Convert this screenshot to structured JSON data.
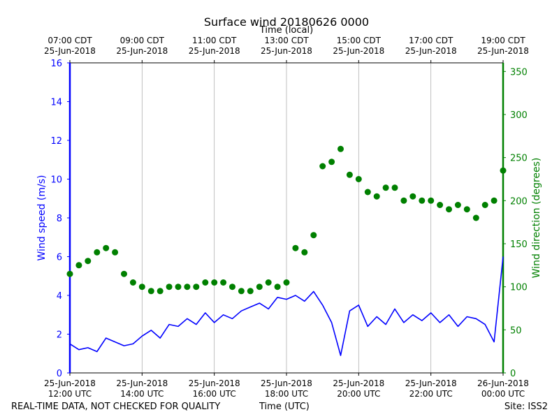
{
  "chart_data": {
    "type": "line+scatter",
    "title": "Surface wind 20180626 0000",
    "top_axis_label": "Time (local)",
    "top_ticks": [
      {
        "hour": 0,
        "time": "07:00 CDT",
        "date": "25-Jun-2018"
      },
      {
        "hour": 2,
        "time": "09:00 CDT",
        "date": "25-Jun-2018"
      },
      {
        "hour": 4,
        "time": "11:00 CDT",
        "date": "25-Jun-2018"
      },
      {
        "hour": 6,
        "time": "13:00 CDT",
        "date": "25-Jun-2018"
      },
      {
        "hour": 8,
        "time": "15:00 CDT",
        "date": "25-Jun-2018"
      },
      {
        "hour": 10,
        "time": "17:00 CDT",
        "date": "25-Jun-2018"
      },
      {
        "hour": 12,
        "time": "19:00 CDT",
        "date": "25-Jun-2018"
      }
    ],
    "bottom_ticks": [
      {
        "hour": 0,
        "date": "25-Jun-2018",
        "time": "12:00 UTC"
      },
      {
        "hour": 2,
        "date": "25-Jun-2018",
        "time": "14:00 UTC"
      },
      {
        "hour": 4,
        "date": "25-Jun-2018",
        "time": "16:00 UTC"
      },
      {
        "hour": 6,
        "date": "25-Jun-2018",
        "time": "18:00 UTC"
      },
      {
        "hour": 8,
        "date": "25-Jun-2018",
        "time": "20:00 UTC"
      },
      {
        "hour": 10,
        "date": "25-Jun-2018",
        "time": "22:00 UTC"
      },
      {
        "hour": 12,
        "date": "26-Jun-2018",
        "time": "00:00 UTC"
      }
    ],
    "xlim_hours_since_12utc": [
      0,
      12
    ],
    "left_axis": {
      "label": "Wind speed (m/s)",
      "ylim": [
        0,
        16
      ],
      "ticks": [
        0,
        2,
        4,
        6,
        8,
        10,
        12,
        14,
        16
      ],
      "color": "#0000ff"
    },
    "right_axis": {
      "label": "Wind direction (degrees)",
      "ylim": [
        0,
        360
      ],
      "ticks": [
        0,
        50,
        100,
        150,
        200,
        250,
        300,
        350
      ],
      "color": "#008000"
    },
    "grid": "vertical",
    "series": [
      {
        "name": "Wind speed",
        "axis": "left",
        "style": "line",
        "color": "#0000ff",
        "hours": [
          0,
          0.25,
          0.5,
          0.75,
          1,
          1.25,
          1.5,
          1.75,
          2,
          2.25,
          2.5,
          2.75,
          3,
          3.25,
          3.5,
          3.75,
          4,
          4.25,
          4.5,
          4.75,
          5,
          5.25,
          5.5,
          5.75,
          6,
          6.25,
          6.5,
          6.75,
          7,
          7.25,
          7.5,
          7.75,
          8,
          8.25,
          8.5,
          8.75,
          9,
          9.25,
          9.5,
          9.75,
          10,
          10.25,
          10.5,
          10.75,
          11,
          11.25,
          11.5,
          11.75,
          12
        ],
        "values": [
          1.5,
          1.2,
          1.3,
          1.1,
          1.8,
          1.6,
          1.4,
          1.5,
          1.9,
          2.2,
          1.8,
          2.5,
          2.4,
          2.8,
          2.5,
          3.1,
          2.6,
          3.0,
          2.8,
          3.2,
          3.4,
          3.6,
          3.3,
          3.9,
          3.8,
          4.0,
          3.7,
          4.2,
          3.5,
          2.6,
          0.9,
          3.2,
          3.5,
          2.4,
          2.9,
          2.5,
          3.3,
          2.6,
          3.0,
          2.7,
          3.1,
          2.6,
          3.0,
          2.4,
          2.9,
          2.8,
          2.5,
          1.6,
          6.0
        ]
      },
      {
        "name": "Wind direction",
        "axis": "right",
        "style": "scatter",
        "color": "#008000",
        "hours": [
          0,
          0.25,
          0.5,
          0.75,
          1,
          1.25,
          1.5,
          1.75,
          2,
          2.25,
          2.5,
          2.75,
          3,
          3.25,
          3.5,
          3.75,
          4,
          4.25,
          4.5,
          4.75,
          5,
          5.25,
          5.5,
          5.75,
          6,
          6.25,
          6.5,
          6.75,
          7,
          7.25,
          7.5,
          7.75,
          8,
          8.25,
          8.5,
          8.75,
          9,
          9.25,
          9.5,
          9.75,
          10,
          10.25,
          10.5,
          10.75,
          11,
          11.25,
          11.5,
          11.75,
          12
        ],
        "values": [
          115,
          125,
          130,
          140,
          145,
          140,
          115,
          105,
          100,
          95,
          95,
          100,
          100,
          100,
          100,
          105,
          105,
          105,
          100,
          95,
          95,
          100,
          105,
          100,
          105,
          145,
          140,
          160,
          240,
          245,
          260,
          230,
          225,
          210,
          205,
          215,
          215,
          200,
          205,
          200,
          200,
          195,
          190,
          195,
          190,
          180,
          195,
          200,
          235
        ]
      }
    ]
  },
  "footer": {
    "left": "REAL-TIME DATA, NOT CHECKED FOR QUALITY",
    "center": "Time (UTC)",
    "right": "Site: ISS2"
  }
}
